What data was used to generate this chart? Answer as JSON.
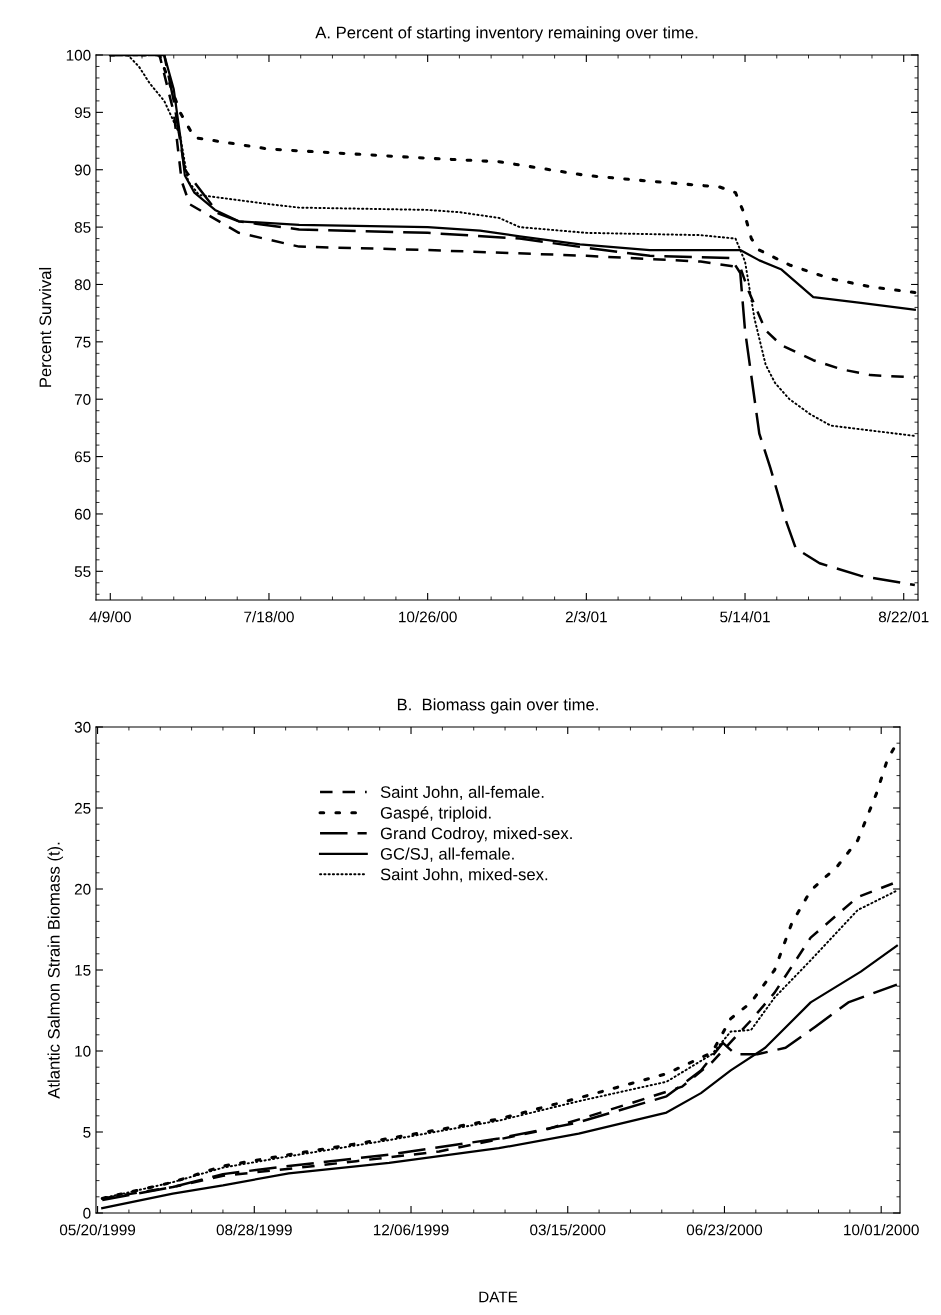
{
  "chart_data": [
    {
      "type": "line",
      "title": "A. Percent of starting inventory remaining over time.",
      "ylabel": "Percent Survival",
      "xlim": [
        "2000-03-31",
        "2001-08-31"
      ],
      "ylim": [
        52.5,
        100
      ],
      "xticks": [
        {
          "value": "2000-04-09",
          "label": "4/9/00"
        },
        {
          "value": "2000-07-18",
          "label": "7/18/00"
        },
        {
          "value": "2000-10-26",
          "label": "10/26/00"
        },
        {
          "value": "2001-02-03",
          "label": "2/3/01"
        },
        {
          "value": "2001-05-14",
          "label": "5/14/01"
        },
        {
          "value": "2001-08-22",
          "label": "8/22/01"
        }
      ],
      "yticks": [
        55,
        60,
        65,
        70,
        75,
        80,
        85,
        90,
        95,
        100
      ],
      "grid": false,
      "legend": false,
      "series": [
        {
          "color": "#000000",
          "line_style": "dashed",
          "x": [
            "2000-04-09",
            "2000-05-10",
            "2000-05-19",
            "2000-05-24",
            "2000-05-29",
            "2000-06-29",
            "2000-08-06",
            "2000-10-26",
            "2001-02-03",
            "2001-04-16",
            "2001-05-11",
            "2001-05-16",
            "2001-05-27",
            "2001-06-06",
            "2001-06-26",
            "2001-07-14",
            "2001-08-01",
            "2001-08-29"
          ],
          "values": [
            100,
            100,
            95,
            89,
            87,
            84.5,
            83.3,
            83,
            82.5,
            82,
            81.5,
            79.5,
            76,
            74.7,
            73.4,
            72.6,
            72.1,
            71.9
          ]
        },
        {
          "color": "#000000",
          "line_style": "loosely dotted",
          "x": [
            "2000-04-09",
            "2000-05-10",
            "2000-05-23",
            "2000-06-01",
            "2000-07-18",
            "2000-10-26",
            "2000-12-10",
            "2001-02-03",
            "2001-03-15",
            "2001-04-28",
            "2001-05-08",
            "2001-05-14",
            "2001-05-18",
            "2001-05-23",
            "2001-06-11",
            "2001-07-07",
            "2001-08-01",
            "2001-08-29"
          ],
          "values": [
            100,
            100,
            95,
            92.8,
            91.8,
            91,
            90.7,
            89.5,
            89,
            88.5,
            88,
            86,
            84,
            83,
            81.7,
            80.5,
            79.8,
            79.3
          ]
        },
        {
          "color": "#000000",
          "line_style": "long dashed",
          "x": [
            "2000-04-09",
            "2000-05-13",
            "2000-05-19",
            "2000-05-26",
            "2000-06-16",
            "2000-06-29",
            "2000-08-06",
            "2000-10-26",
            "2000-12-23",
            "2001-02-03",
            "2001-03-15",
            "2001-05-05",
            "2001-05-11",
            "2001-05-14",
            "2001-05-18",
            "2001-05-23",
            "2001-05-30",
            "2001-06-08",
            "2001-06-15",
            "2001-06-30",
            "2001-07-26",
            "2001-08-29"
          ],
          "values": [
            100,
            100,
            96,
            90,
            86.2,
            85.5,
            84.8,
            84.5,
            84,
            83.2,
            82.5,
            82.3,
            81,
            76,
            72,
            67,
            64,
            59.7,
            57,
            55.7,
            54.6,
            53.8
          ]
        },
        {
          "color": "#000000",
          "line_style": "solid",
          "x": [
            "2000-04-09",
            "2000-05-13",
            "2000-05-19",
            "2000-05-23",
            "2000-05-26",
            "2000-06-01",
            "2000-06-14",
            "2000-06-29",
            "2000-08-06",
            "2000-10-26",
            "2000-11-28",
            "2000-12-23",
            "2001-01-30",
            "2001-03-15",
            "2001-05-11",
            "2001-05-23",
            "2001-06-06",
            "2001-06-26",
            "2001-07-26",
            "2001-08-29"
          ],
          "values": [
            100,
            100,
            97,
            93,
            89.5,
            88,
            86.5,
            85.5,
            85.2,
            85,
            84.7,
            84.2,
            83.5,
            83,
            83,
            82.1,
            81.3,
            78.9,
            78.4,
            77.8
          ]
        },
        {
          "color": "#000000",
          "line_style": "dotted",
          "x": [
            "2000-04-09",
            "2000-04-20",
            "2000-04-27",
            "2000-05-04",
            "2000-05-13",
            "2000-05-23",
            "2000-05-28",
            "2000-06-04",
            "2000-07-18",
            "2000-08-06",
            "2000-10-26",
            "2000-11-15",
            "2000-12-10",
            "2000-12-23",
            "2001-02-03",
            "2001-04-16",
            "2001-05-08",
            "2001-05-14",
            "2001-05-20",
            "2001-05-27",
            "2001-06-02",
            "2001-06-11",
            "2001-06-24",
            "2001-07-07",
            "2001-08-29"
          ],
          "values": [
            100,
            100,
            99,
            97.5,
            96,
            93,
            89,
            87.8,
            87,
            86.7,
            86.5,
            86.3,
            85.8,
            85,
            84.5,
            84.3,
            84,
            82,
            77,
            73,
            71.4,
            70,
            68.7,
            67.7,
            66.8
          ]
        }
      ]
    },
    {
      "type": "line",
      "title": "B.  Biomass gain over time.",
      "xlabel": "DATE",
      "ylabel": "Atlantic Salmon Strain Biomass (t).",
      "xlim": [
        "1999-05-19",
        "2000-10-13"
      ],
      "ylim": [
        0,
        30
      ],
      "xticks": [
        {
          "value": "1999-05-20",
          "label": "05/20/1999"
        },
        {
          "value": "1999-08-28",
          "label": "08/28/1999"
        },
        {
          "value": "1999-12-06",
          "label": "12/06/1999"
        },
        {
          "value": "2000-03-15",
          "label": "03/15/2000"
        },
        {
          "value": "2000-06-23",
          "label": "06/23/2000"
        },
        {
          "value": "2000-10-01",
          "label": "10/01/2000"
        }
      ],
      "yticks": [
        0,
        5,
        10,
        15,
        20,
        25,
        30
      ],
      "grid": false,
      "legend": "top left",
      "series": [
        {
          "name": "Saint John, all-female.",
          "color": "#000000",
          "line_style": "dashed",
          "x": [
            "1999-05-23",
            "1999-07-07",
            "1999-08-08",
            "1999-09-26",
            "1999-11-01",
            "1999-12-24",
            "2000-02-13",
            "2000-03-03",
            "2000-04-25",
            "2000-05-27",
            "2000-06-15",
            "2000-07-10",
            "2000-07-25",
            "2000-08-17",
            "2000-09-16",
            "2000-10-10"
          ],
          "values": [
            0.9,
            1.6,
            2.3,
            2.8,
            3.2,
            3.8,
            4.8,
            5.2,
            6.8,
            7.8,
            9.3,
            11.9,
            13.6,
            17.0,
            19.5,
            20.4
          ]
        },
        {
          "name": "Gaspé, triploid.",
          "color": "#000000",
          "line_style": "loosely dotted",
          "x": [
            "1999-05-23",
            "1999-07-07",
            "1999-08-08",
            "1999-09-19",
            "1999-11-22",
            "2000-01-31",
            "2000-03-22",
            "2000-05-17",
            "2000-06-15",
            "2000-06-27",
            "2000-07-10",
            "2000-07-25",
            "2000-08-05",
            "2000-08-17",
            "2000-09-03",
            "2000-09-16",
            "2000-09-28",
            "2000-10-05",
            "2000-10-11"
          ],
          "values": [
            0.9,
            1.9,
            2.9,
            3.6,
            4.6,
            5.8,
            7.1,
            8.6,
            9.9,
            12.0,
            13.0,
            15.0,
            17.9,
            19.9,
            21.4,
            23.0,
            25.9,
            28.0,
            29.0
          ]
        },
        {
          "name": "Grand Codroy, mixed-sex.",
          "color": "#000000",
          "line_style": "long dashed",
          "x": [
            "1999-05-23",
            "1999-07-07",
            "1999-08-08",
            "1999-09-19",
            "1999-11-22",
            "2000-01-31",
            "2000-03-22",
            "2000-05-17",
            "2000-06-08",
            "2000-06-22",
            "2000-06-30",
            "2000-07-14",
            "2000-08-01",
            "2000-08-20",
            "2000-09-10",
            "2000-10-11"
          ],
          "values": [
            0.8,
            1.6,
            2.4,
            2.9,
            3.6,
            4.6,
            5.6,
            7.2,
            8.8,
            10.5,
            9.8,
            9.8,
            10.2,
            11.5,
            13.0,
            14.1
          ]
        },
        {
          "name": "GC/SJ, all-female.",
          "color": "#000000",
          "line_style": "solid",
          "x": [
            "1999-05-23",
            "1999-07-07",
            "1999-08-08",
            "1999-09-19",
            "1999-11-22",
            "2000-01-31",
            "2000-03-22",
            "2000-05-17",
            "2000-06-08",
            "2000-06-27",
            "2000-07-19",
            "2000-08-17",
            "2000-09-18",
            "2000-10-11"
          ],
          "values": [
            0.3,
            1.2,
            1.7,
            2.45,
            3.1,
            4.0,
            4.9,
            6.2,
            7.4,
            8.8,
            10.2,
            13.0,
            14.9,
            16.5
          ]
        },
        {
          "name": "Saint John, mixed-sex.",
          "color": "#000000",
          "line_style": "dotted",
          "x": [
            "1999-05-23",
            "1999-07-07",
            "1999-08-08",
            "1999-09-19",
            "1999-11-22",
            "2000-01-31",
            "2000-03-22",
            "2000-05-17",
            "2000-06-15",
            "2000-06-27",
            "2000-07-10",
            "2000-07-25",
            "2000-08-17",
            "2000-09-16",
            "2000-10-11"
          ],
          "values": [
            0.9,
            1.9,
            2.8,
            3.5,
            4.5,
            5.7,
            6.9,
            8.1,
            9.8,
            11.2,
            11.3,
            13.3,
            15.6,
            18.7,
            19.9
          ]
        }
      ]
    }
  ]
}
